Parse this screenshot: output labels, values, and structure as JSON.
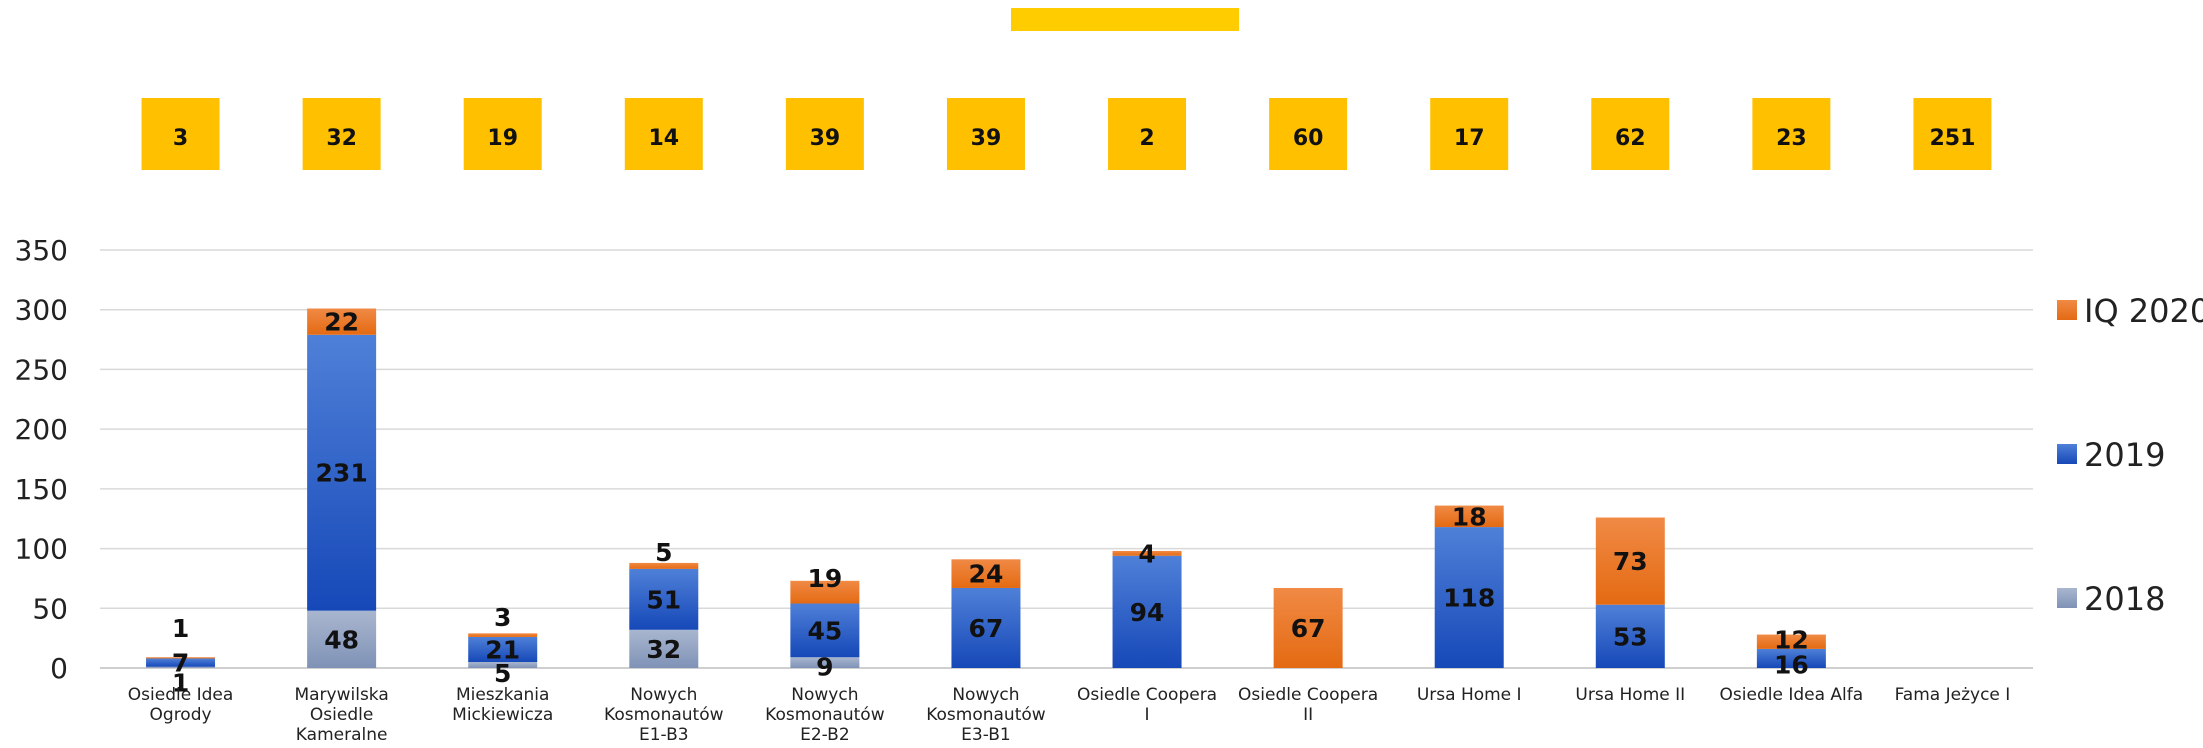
{
  "chart_data": {
    "type": "bar",
    "stacked": true,
    "title": "",
    "xlabel": "",
    "ylabel": "",
    "ylim": [
      0,
      350
    ],
    "yticks": [
      0,
      50,
      100,
      150,
      200,
      250,
      300,
      350
    ],
    "grid": true,
    "legend_position": "right",
    "categories": [
      [
        "Osiedle Idea",
        "Ogrody"
      ],
      [
        "Marywilska",
        "Osiedle",
        "Kameralne"
      ],
      [
        "Mieszkania",
        "Mickiewicza"
      ],
      [
        "Nowych",
        "Kosmonautów",
        "E1-B3"
      ],
      [
        "Nowych",
        "Kosmonautów",
        "E2-B2"
      ],
      [
        "Nowych",
        "Kosmonautów",
        "E3-B1"
      ],
      [
        "Osiedle Coopera",
        "I"
      ],
      [
        "Osiedle Coopera",
        "II"
      ],
      [
        "Ursa Home I"
      ],
      [
        "Ursa Home II"
      ],
      [
        "Osiedle Idea Alfa"
      ],
      [
        "Fama Jeżyce I"
      ]
    ],
    "series": [
      {
        "name": "2018",
        "color": "#8d9fbf",
        "values": [
          1,
          48,
          5,
          32,
          9,
          null,
          null,
          null,
          null,
          null,
          null,
          null
        ]
      },
      {
        "name": "2019",
        "color": "#2154c3",
        "values": [
          7,
          231,
          21,
          51,
          45,
          67,
          94,
          null,
          118,
          53,
          16,
          null
        ]
      },
      {
        "name": "IQ 2020",
        "color": "#ee7a2b",
        "values": [
          1,
          22,
          3,
          5,
          19,
          24,
          4,
          67,
          18,
          73,
          12,
          null
        ]
      }
    ],
    "top_boxes": {
      "color": "#ffc000",
      "values": [
        "3",
        "32",
        "19",
        "14",
        "39",
        "39",
        "2",
        "60",
        "17",
        "62",
        "23",
        "251"
      ]
    },
    "header_bar_color": "#ffcc00"
  }
}
